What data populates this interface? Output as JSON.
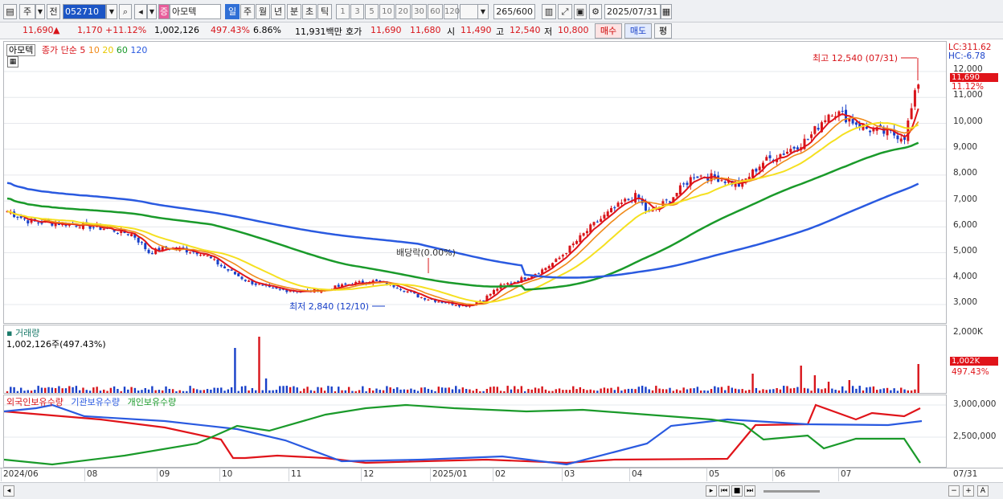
{
  "toolbar": {
    "market_type": "주",
    "prefix_btn": "전",
    "stock_code": "052710",
    "stock_badge": "증",
    "stock_name": "아모텍",
    "period_tabs": [
      "일",
      "주",
      "월",
      "년",
      "분",
      "초",
      "틱"
    ],
    "minute_options": [
      "1",
      "3",
      "5",
      "10",
      "20",
      "30",
      "60",
      "120"
    ],
    "count_display": "265",
    "count_total": "/600",
    "date": "2025/07/31"
  },
  "quote": {
    "price": "11,690",
    "arrow": "▲",
    "change": "1,170",
    "change_pct": "+11.12%",
    "volume": "1,002,126",
    "volume_ratio": "497.43%",
    "turnover": "6.86%",
    "amount": "11,931백만",
    "hoga_label": "호가",
    "ask": "11,690",
    "bid": "11,680",
    "open_label": "시",
    "open": "11,490",
    "high_label": "고",
    "high": "12,540",
    "low_label": "저",
    "low": "10,800",
    "buy_btn": "매수",
    "sell_btn": "매도",
    "eval_btn": "평"
  },
  "price_pane": {
    "stock_label": "아모텍",
    "ma_label": "종가 단순",
    "ma_periods": [
      "5",
      "10",
      "20",
      "60",
      "120"
    ],
    "lc_value": "LC:311.62",
    "hc_value": "HC:-6.78",
    "current_price": "11,690",
    "current_pct": "11.12%",
    "y_ticks": [
      "12,000",
      "11,000",
      "10,000",
      "9,000",
      "8,000",
      "7,000",
      "6,000",
      "5,000",
      "4,000",
      "3,000"
    ],
    "high_annotation": "최고 12,540 (07/31)",
    "low_annotation": "최저 2,840 (12/10)",
    "dividend_annotation": "배당락(0.00%)"
  },
  "volume_pane": {
    "title": "거래량",
    "value_label": "1,002,126주(497.43%)",
    "y_tick": "2,000K",
    "current": "1,002K",
    "current_pct": "497.43%"
  },
  "holdings_pane": {
    "legend": [
      "외국인보유수량",
      "기관보유수량",
      "개인보유수량"
    ],
    "y_ticks": [
      "3,000,000",
      "2,500,000"
    ]
  },
  "time_axis": {
    "labels": [
      "2024/06",
      "08",
      "09",
      "10",
      "11",
      "12",
      "2025/01",
      "02",
      "03",
      "04",
      "05",
      "06",
      "07"
    ],
    "last_date": "07/31"
  },
  "colors": {
    "up": "#d8141a",
    "down": "#1840c9",
    "ma5": "#e0141a",
    "ma10": "#f08a1a",
    "ma20": "#f5e020",
    "ma60": "#1a9a2a",
    "ma120": "#2a5ae0"
  },
  "icons": [
    "menu-icon",
    "dropdown-icon",
    "search-icon",
    "speaker-icon",
    "settings-icon",
    "save-icon",
    "calendar-icon"
  ]
}
